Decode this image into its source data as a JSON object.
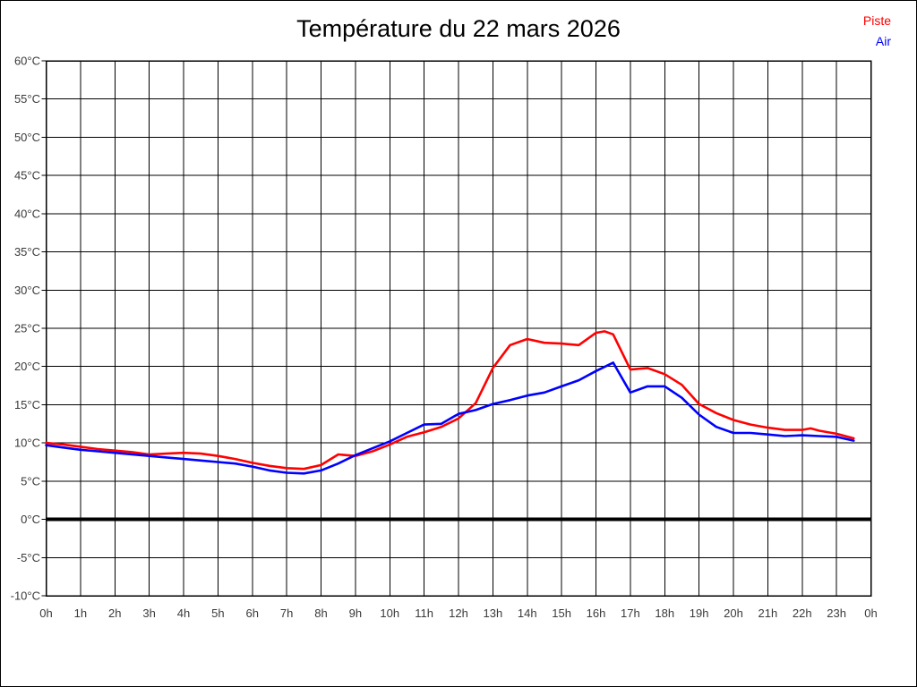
{
  "title": "Température du 22 mars 2026",
  "legend": {
    "items": [
      {
        "label": "Piste",
        "color": "#ff0000"
      },
      {
        "label": "Air",
        "color": "#0000ff"
      }
    ]
  },
  "chart_data": {
    "type": "line",
    "title": "Température du 22 mars 2026",
    "xlabel": "",
    "ylabel": "",
    "x_unit": "hours",
    "xlim": [
      0,
      24
    ],
    "ylim": [
      -10,
      60
    ],
    "grid": true,
    "legend_position": "top-right",
    "x_tick_labels": [
      "0h",
      "1h",
      "2h",
      "3h",
      "4h",
      "5h",
      "6h",
      "7h",
      "8h",
      "9h",
      "10h",
      "11h",
      "12h",
      "13h",
      "14h",
      "15h",
      "16h",
      "17h",
      "18h",
      "19h",
      "20h",
      "21h",
      "22h",
      "23h",
      "0h"
    ],
    "y_tick_values": [
      60,
      55,
      50,
      45,
      40,
      35,
      30,
      25,
      20,
      15,
      10,
      5,
      0,
      -5,
      -10
    ],
    "y_tick_labels": [
      "60°C",
      "55°C",
      "50°C",
      "45°C",
      "40°C",
      "35°C",
      "30°C",
      "25°C",
      "20°C",
      "15°C",
      "10°C",
      "5°C",
      "0°C",
      "-5°C",
      "-10°C"
    ],
    "zero_line": {
      "value": 0,
      "color": "#000000",
      "width": 4
    },
    "grid_color": "#000000",
    "tick_label_color": "#3a3a3a",
    "series": [
      {
        "name": "Piste",
        "color": "#ff0000",
        "points": [
          [
            0,
            10.0
          ],
          [
            0.5,
            9.8
          ],
          [
            1,
            9.5
          ],
          [
            1.5,
            9.2
          ],
          [
            2,
            9.0
          ],
          [
            2.5,
            8.8
          ],
          [
            3,
            8.5
          ],
          [
            3.5,
            8.6
          ],
          [
            4,
            8.7
          ],
          [
            4.5,
            8.6
          ],
          [
            5,
            8.3
          ],
          [
            5.5,
            7.9
          ],
          [
            6,
            7.4
          ],
          [
            6.5,
            7.0
          ],
          [
            7,
            6.7
          ],
          [
            7.5,
            6.6
          ],
          [
            8,
            7.1
          ],
          [
            8.5,
            8.5
          ],
          [
            9,
            8.3
          ],
          [
            9.5,
            8.9
          ],
          [
            10,
            9.8
          ],
          [
            10.5,
            10.8
          ],
          [
            11,
            11.4
          ],
          [
            11.5,
            12.1
          ],
          [
            12,
            13.2
          ],
          [
            12.5,
            15.2
          ],
          [
            13,
            19.8
          ],
          [
            13.5,
            22.8
          ],
          [
            14,
            23.6
          ],
          [
            14.5,
            23.1
          ],
          [
            15,
            23.0
          ],
          [
            15.5,
            22.8
          ],
          [
            16,
            24.4
          ],
          [
            16.25,
            24.6
          ],
          [
            16.5,
            24.2
          ],
          [
            17,
            19.6
          ],
          [
            17.5,
            19.8
          ],
          [
            18,
            19.0
          ],
          [
            18.5,
            17.6
          ],
          [
            19,
            15.1
          ],
          [
            19.5,
            13.9
          ],
          [
            20,
            13.0
          ],
          [
            20.5,
            12.4
          ],
          [
            21,
            12.0
          ],
          [
            21.5,
            11.7
          ],
          [
            22,
            11.7
          ],
          [
            22.25,
            11.9
          ],
          [
            22.5,
            11.6
          ],
          [
            23,
            11.2
          ],
          [
            23.5,
            10.6
          ]
        ]
      },
      {
        "name": "Air",
        "color": "#0000ff",
        "points": [
          [
            0,
            9.7
          ],
          [
            0.5,
            9.4
          ],
          [
            1,
            9.1
          ],
          [
            1.5,
            8.9
          ],
          [
            2,
            8.7
          ],
          [
            2.5,
            8.5
          ],
          [
            3,
            8.3
          ],
          [
            3.5,
            8.1
          ],
          [
            4,
            7.9
          ],
          [
            4.5,
            7.7
          ],
          [
            5,
            7.5
          ],
          [
            5.5,
            7.3
          ],
          [
            6,
            6.9
          ],
          [
            6.5,
            6.4
          ],
          [
            7,
            6.1
          ],
          [
            7.5,
            6.0
          ],
          [
            8,
            6.4
          ],
          [
            8.5,
            7.3
          ],
          [
            9,
            8.4
          ],
          [
            9.5,
            9.3
          ],
          [
            10,
            10.2
          ],
          [
            10.5,
            11.3
          ],
          [
            11,
            12.4
          ],
          [
            11.5,
            12.5
          ],
          [
            12,
            13.8
          ],
          [
            12.5,
            14.3
          ],
          [
            13,
            15.1
          ],
          [
            13.5,
            15.6
          ],
          [
            14,
            16.2
          ],
          [
            14.5,
            16.6
          ],
          [
            15,
            17.4
          ],
          [
            15.5,
            18.2
          ],
          [
            16,
            19.4
          ],
          [
            16.5,
            20.5
          ],
          [
            17,
            16.6
          ],
          [
            17.5,
            17.4
          ],
          [
            18,
            17.4
          ],
          [
            18.5,
            15.9
          ],
          [
            19,
            13.7
          ],
          [
            19.5,
            12.1
          ],
          [
            20,
            11.3
          ],
          [
            20.5,
            11.3
          ],
          [
            21,
            11.1
          ],
          [
            21.5,
            10.9
          ],
          [
            22,
            11.0
          ],
          [
            22.5,
            10.9
          ],
          [
            23,
            10.8
          ],
          [
            23.5,
            10.3
          ]
        ]
      }
    ]
  }
}
